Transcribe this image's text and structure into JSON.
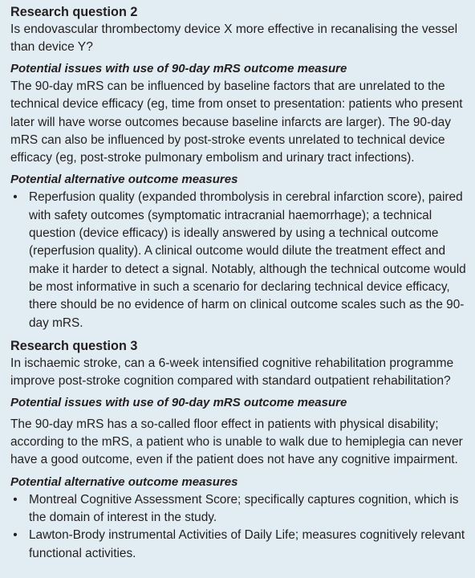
{
  "rq2": {
    "heading": "Research question 2",
    "question": "Is endovascular thrombectomy device X more effective in recanalising the vessel than device Y?",
    "issues_heading": "Potential issues with use of 90-day mRS outcome measure",
    "issues_text": "The 90-day mRS can be influenced by baseline factors that are unrelated to the technical device efficacy (eg, time from onset to presentation: patients who present later will have worse outcomes because baseline infarcts are larger). The 90-day mRS can also be influenced by post-stroke events unrelated to technical device efficacy (eg, post-stroke pulmonary embolism and urinary tract infections).",
    "alternatives_heading": "Potential alternative outcome measures",
    "alternatives": [
      "Reperfusion quality (expanded thrombolysis in cerebral infarction score), paired with safety outcomes (symptomatic intracranial haemorrhage); a technical question (device efficacy) is ideally answered by using a technical outcome (reperfusion quality). A clinical outcome would dilute the treatment effect and make it harder to detect a signal. Notably, although the technical outcome would be most informative in such a scenario for declaring technical device efficacy, there should be no evidence of harm on clinical outcome scales such as the 90-day mRS."
    ]
  },
  "rq3": {
    "heading": "Research question 3",
    "question": "In ischaemic stroke, can a 6-week intensified cognitive rehabilitation programme improve post-stroke cognition compared with standard outpatient rehabilitation?",
    "issues_heading": "Potential issues with use of 90-day mRS outcome measure",
    "issues_text": "The 90-day mRS has a so-called floor effect in patients with physical disability; according to the mRS, a patient who is unable to walk due to hemiplegia can never have a good outcome, even if the patient does not have any cognitive impairment.",
    "alternatives_heading": "Potential alternative outcome measures",
    "alternatives": [
      "Montreal Cognitive Assessment Score; specifically captures cognition, which is the domain of interest in the study.",
      "Lawton-Brody instrumental Activities of Daily Life; measures cognitively relevant functional activities."
    ]
  },
  "bullet_glyph": "•"
}
